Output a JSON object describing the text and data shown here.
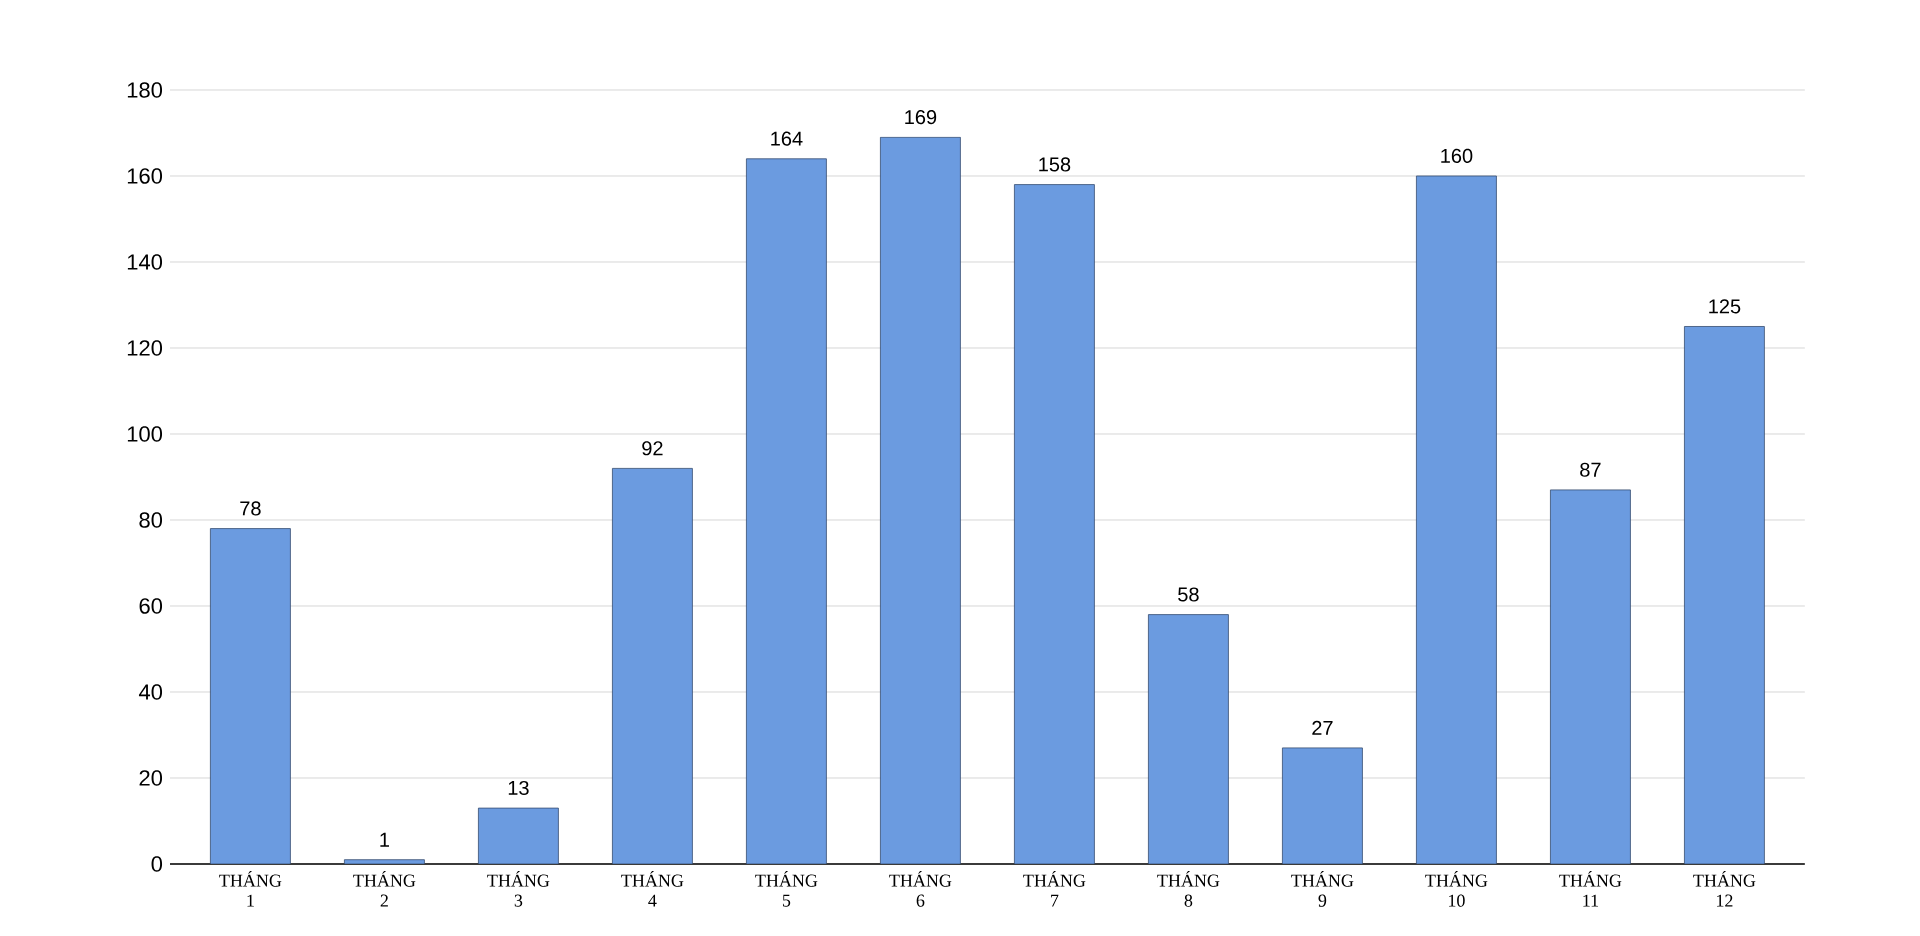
{
  "chart_data": {
    "type": "bar",
    "categories": [
      "THÁNG 1",
      "THÁNG 2",
      "THÁNG 3",
      "THÁNG 4",
      "THÁNG 5",
      "THÁNG 6",
      "THÁNG 7",
      "THÁNG 8",
      "THÁNG 9",
      "THÁNG 10",
      "THÁNG 11",
      "THÁNG 12"
    ],
    "values": [
      78,
      1,
      13,
      92,
      164,
      169,
      158,
      58,
      27,
      160,
      87,
      125
    ],
    "color": "#6b9be0",
    "ylim": [
      0,
      180
    ],
    "yticks": [
      0,
      20,
      40,
      60,
      80,
      100,
      120,
      140,
      160,
      180
    ],
    "grid": "y",
    "data_labels": true
  }
}
